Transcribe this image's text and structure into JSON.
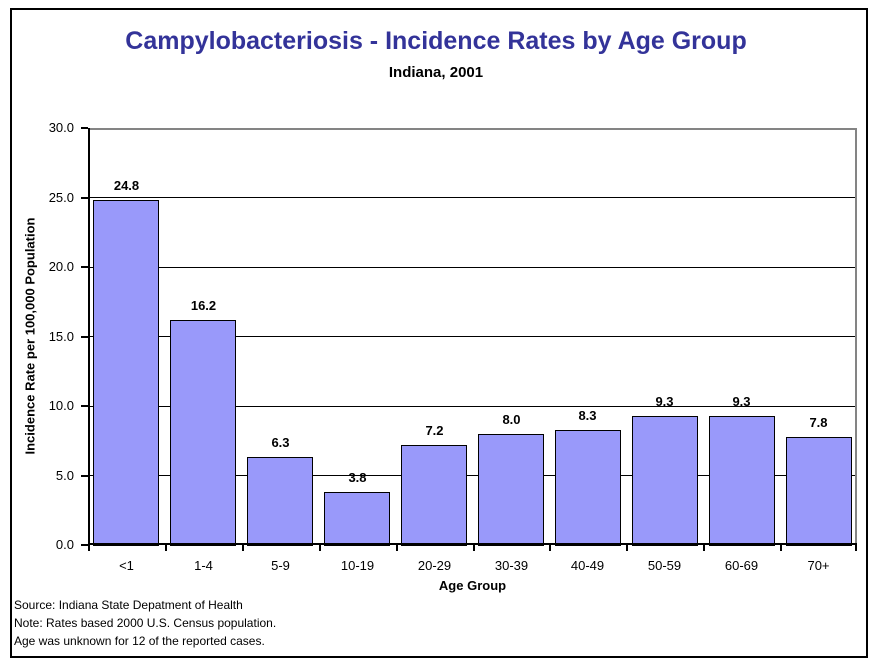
{
  "chart_data": {
    "type": "bar",
    "title": "Campylobacteriosis - Incidence Rates by Age Group",
    "subtitle": "Indiana, 2001",
    "xlabel": "Age Group",
    "ylabel": "Incidence Rate per 100,000 Population",
    "categories": [
      "<1",
      "1-4",
      "5-9",
      "10-19",
      "20-29",
      "30-39",
      "40-49",
      "50-59",
      "60-69",
      "70+"
    ],
    "values": [
      24.8,
      16.2,
      6.3,
      3.8,
      7.2,
      8.0,
      8.3,
      9.3,
      9.3,
      7.8
    ],
    "value_label_decimals": 1,
    "ylim": [
      0,
      30
    ],
    "ytick_step": 5,
    "ytick_labels": [
      "0.0",
      "5.0",
      "10.0",
      "15.0",
      "20.0",
      "25.0",
      "30.0"
    ],
    "grid": true,
    "legend": "none",
    "colors": {
      "bar_fill": "#9999FA",
      "bar_border": "#000000",
      "title_text": "#333399",
      "gridline": "#000000",
      "plot_frame_gray": "#848484"
    }
  },
  "footer": {
    "lines": [
      "Source: Indiana State Depatment of Health",
      "Note: Rates based 2000 U.S. Census population.",
      "Age was unknown for 12 of the reported cases."
    ]
  }
}
